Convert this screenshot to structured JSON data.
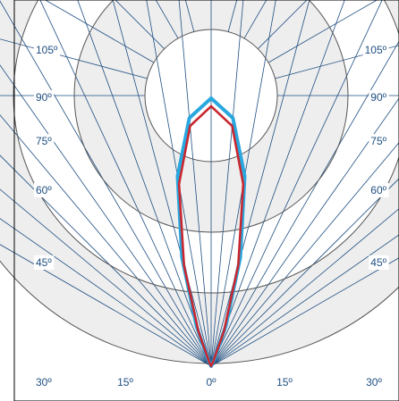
{
  "chart_data": {
    "type": "polar",
    "angle_unit": "degrees",
    "angle_ticks": [
      "105º",
      "90º",
      "75º",
      "60º",
      "45º",
      "30º",
      "15º",
      "0º",
      "15º",
      "30º",
      "45º",
      "60º",
      "75º",
      "90º",
      "105º"
    ],
    "radial_ring_count": 4,
    "series": [
      {
        "color": "#29a8df",
        "samples": [
          {
            "angle": 0,
            "value": 1.0
          },
          {
            "angle": 5,
            "value": 0.93
          },
          {
            "angle": 10,
            "value": 0.72
          },
          {
            "angle": 15,
            "value": 0.42
          },
          {
            "angle": 20,
            "value": 0.16
          },
          {
            "angle": 25,
            "value": 0.03
          },
          {
            "angle": 30,
            "value": 0.0
          }
        ]
      },
      {
        "color": "#c9272f",
        "samples": [
          {
            "angle": 0,
            "value": 0.97
          },
          {
            "angle": 5,
            "value": 0.9
          },
          {
            "angle": 10,
            "value": 0.69
          },
          {
            "angle": 15,
            "value": 0.39
          },
          {
            "angle": 20,
            "value": 0.14
          },
          {
            "angle": 25,
            "value": 0.02
          },
          {
            "angle": 30,
            "value": 0.0
          }
        ]
      }
    ],
    "colors": {
      "ring_line": "#555555",
      "spoke_line": "#1f4f82",
      "band_fill": "#eeeeee",
      "label_text": "#1f4f82",
      "frame": "#000000"
    }
  }
}
